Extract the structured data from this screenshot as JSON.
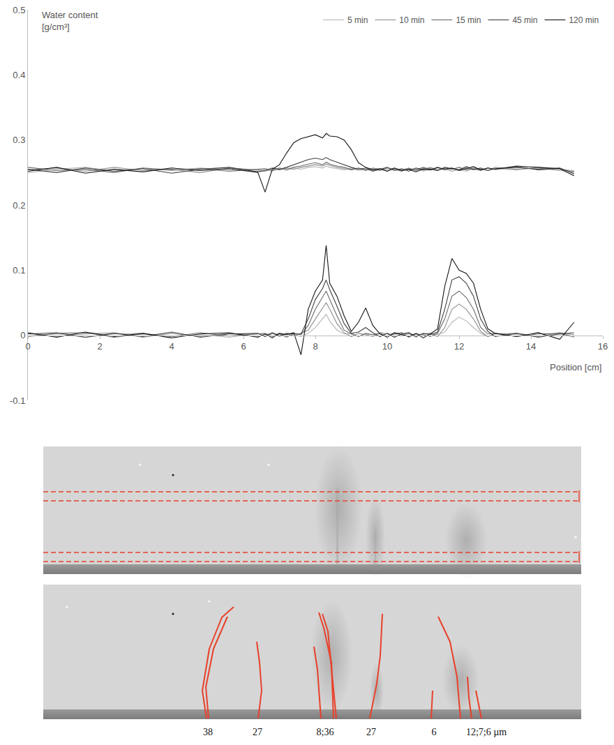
{
  "chart_data": {
    "type": "line",
    "x_label": "Position [cm]",
    "y_label": "Water content [g/cm³]",
    "xlim": [
      0,
      16
    ],
    "xticks": [
      0,
      2,
      4,
      6,
      8,
      10,
      12,
      14,
      16
    ],
    "ylim": [
      -0.1,
      0.5
    ],
    "yticks": [
      -0.1,
      0,
      0.1,
      0.2,
      0.3,
      0.4,
      0.5
    ],
    "grid": false,
    "legend": "top right",
    "x": [
      0,
      0.8,
      1.6,
      2.4,
      3.2,
      4.0,
      4.8,
      5.6,
      6.4,
      6.6,
      6.8,
      7.0,
      7.2,
      7.4,
      7.6,
      7.8,
      8.0,
      8.2,
      8.3,
      8.4,
      8.6,
      8.8,
      9.0,
      9.2,
      9.4,
      9.6,
      9.8,
      10.0,
      10.2,
      10.4,
      10.6,
      10.8,
      11.0,
      11.2,
      11.4,
      11.6,
      11.8,
      12.0,
      12.2,
      12.4,
      12.6,
      12.8,
      13.0,
      13.6,
      14.2,
      14.8,
      15.2
    ],
    "series": [
      {
        "name": "5 min",
        "color": "#b4b4b4",
        "values": [
          0.25,
          0.255,
          0.258,
          0.252,
          0.256,
          0.253,
          0.257,
          0.254,
          0.252,
          0.255,
          0.252,
          0.256,
          0.253,
          0.257,
          0.255,
          0.258,
          0.259,
          0.257,
          0.26,
          0.258,
          0.256,
          0.254,
          0.257,
          0.253,
          0.255,
          0.252,
          0.256,
          0.254,
          0.257,
          0.253,
          0.255,
          0.256,
          0.252,
          0.255,
          0.257,
          0.253,
          0.256,
          0.254,
          0.252,
          0.257,
          0.255,
          0.253,
          0.256,
          0.254,
          0.258,
          0.255,
          0.253
        ]
      },
      {
        "name": "10 min",
        "color": "#8e8e8e",
        "values": [
          0.254,
          0.257,
          0.252,
          0.258,
          0.253,
          0.255,
          0.25,
          0.257,
          0.254,
          0.252,
          0.256,
          0.254,
          0.257,
          0.255,
          0.258,
          0.26,
          0.262,
          0.26,
          0.263,
          0.261,
          0.258,
          0.256,
          0.254,
          0.256,
          0.253,
          0.257,
          0.255,
          0.252,
          0.256,
          0.254,
          0.257,
          0.253,
          0.255,
          0.258,
          0.254,
          0.256,
          0.252,
          0.255,
          0.257,
          0.254,
          0.256,
          0.253,
          0.258,
          0.255,
          0.257,
          0.253,
          0.252
        ]
      },
      {
        "name": "15 min",
        "color": "#6a6a6a",
        "values": [
          0.258,
          0.253,
          0.255,
          0.25,
          0.257,
          0.254,
          0.256,
          0.252,
          0.255,
          0.256,
          0.253,
          0.257,
          0.255,
          0.258,
          0.26,
          0.263,
          0.265,
          0.262,
          0.266,
          0.263,
          0.26,
          0.258,
          0.255,
          0.257,
          0.254,
          0.256,
          0.253,
          0.257,
          0.255,
          0.252,
          0.256,
          0.254,
          0.258,
          0.255,
          0.253,
          0.257,
          0.255,
          0.258,
          0.254,
          0.256,
          0.253,
          0.257,
          0.255,
          0.259,
          0.254,
          0.256,
          0.25
        ]
      },
      {
        "name": "45 min",
        "color": "#404040",
        "values": [
          0.255,
          0.25,
          0.257,
          0.252,
          0.256,
          0.249,
          0.255,
          0.258,
          0.251,
          0.253,
          0.257,
          0.255,
          0.258,
          0.262,
          0.266,
          0.27,
          0.272,
          0.27,
          0.273,
          0.27,
          0.266,
          0.262,
          0.258,
          0.255,
          0.257,
          0.252,
          0.255,
          0.258,
          0.253,
          0.256,
          0.252,
          0.257,
          0.254,
          0.256,
          0.253,
          0.258,
          0.256,
          0.254,
          0.259,
          0.255,
          0.257,
          0.253,
          0.256,
          0.258,
          0.255,
          0.257,
          0.248
        ]
      },
      {
        "name": "120 min",
        "color": "#151515",
        "values": [
          0.252,
          0.258,
          0.249,
          0.255,
          0.251,
          0.257,
          0.253,
          0.256,
          0.25,
          0.22,
          0.255,
          0.262,
          0.28,
          0.296,
          0.302,
          0.305,
          0.308,
          0.303,
          0.31,
          0.306,
          0.305,
          0.3,
          0.285,
          0.265,
          0.258,
          0.254,
          0.256,
          0.252,
          0.257,
          0.253,
          0.255,
          0.251,
          0.256,
          0.254,
          0.258,
          0.255,
          0.257,
          0.253,
          0.256,
          0.259,
          0.254,
          0.257,
          0.255,
          0.26,
          0.258,
          0.256,
          0.245
        ]
      },
      {
        "name": "5 min",
        "color": "#b4b4b4",
        "values": [
          -0.001,
          0.002,
          -0.003,
          0.002,
          0.003,
          -0.002,
          0.001,
          -0.003,
          0.003,
          -0.002,
          0.002,
          0.003,
          -0.002,
          0.001,
          -0.002,
          0.003,
          0.012,
          0.025,
          0.032,
          0.022,
          0.008,
          0.002,
          0.003,
          -0.002,
          0.002,
          0.001,
          -0.002,
          0.003,
          0.002,
          -0.001,
          0.002,
          -0.003,
          0.002,
          0.003,
          0.001,
          0.005,
          0.02,
          0.028,
          0.022,
          0.012,
          0.003,
          -0.002,
          0.003,
          0.001,
          -0.002,
          0.002,
          -0.003
        ]
      },
      {
        "name": "10 min",
        "color": "#8e8e8e",
        "values": [
          0.003,
          -0.002,
          0.002,
          0.004,
          -0.003,
          0.003,
          -0.002,
          0.003,
          -0.002,
          0.001,
          0.003,
          -0.002,
          0.002,
          -0.001,
          0.003,
          0.008,
          0.025,
          0.042,
          0.05,
          0.04,
          0.018,
          0.004,
          -0.002,
          0.003,
          0.001,
          -0.002,
          0.004,
          0.002,
          -0.003,
          0.002,
          0.003,
          -0.001,
          0.002,
          0.003,
          -0.002,
          0.012,
          0.04,
          0.048,
          0.04,
          0.025,
          0.006,
          -0.002,
          0.002,
          0.003,
          -0.002,
          0.004,
          0.001
        ]
      },
      {
        "name": "15 min",
        "color": "#6a6a6a",
        "values": [
          -0.002,
          0.003,
          0.004,
          -0.003,
          0.002,
          -0.002,
          0.004,
          -0.001,
          0.002,
          0.003,
          -0.002,
          0.002,
          -0.003,
          0.003,
          0.001,
          0.015,
          0.04,
          0.058,
          0.068,
          0.055,
          0.03,
          0.008,
          0.002,
          -0.002,
          0.003,
          0.001,
          0.003,
          -0.002,
          0.002,
          0.004,
          -0.003,
          0.002,
          0.001,
          -0.002,
          0.003,
          0.025,
          0.06,
          0.068,
          0.058,
          0.04,
          0.012,
          0.002,
          0.003,
          -0.002,
          0.002,
          0.003,
          -0.002
        ]
      },
      {
        "name": "45 min",
        "color": "#404040",
        "values": [
          0.002,
          0.004,
          -0.003,
          0.003,
          -0.002,
          0.005,
          -0.003,
          0.002,
          0.003,
          -0.002,
          0.004,
          -0.001,
          0.003,
          0.002,
          0.002,
          0.025,
          0.055,
          0.072,
          0.085,
          0.07,
          0.045,
          0.018,
          0.003,
          0.005,
          0.012,
          0.004,
          -0.002,
          0.003,
          -0.003,
          0.002,
          0.004,
          -0.002,
          0.003,
          0.001,
          0.005,
          0.04,
          0.085,
          0.09,
          0.08,
          0.06,
          0.025,
          0.006,
          -0.002,
          0.003,
          -0.003,
          0.002,
          0.004
        ]
      },
      {
        "name": "120 min",
        "color": "#151515",
        "values": [
          0.004,
          -0.003,
          0.005,
          -0.002,
          0.003,
          -0.004,
          0.002,
          0.004,
          -0.003,
          0.002,
          -0.004,
          0.003,
          0.001,
          0.004,
          -0.03,
          0.04,
          0.068,
          0.085,
          0.138,
          0.08,
          0.06,
          0.03,
          0.006,
          0.02,
          0.042,
          0.015,
          0.002,
          -0.003,
          0.004,
          0.001,
          -0.002,
          0.003,
          -0.004,
          0.002,
          0.01,
          0.075,
          0.118,
          0.1,
          0.095,
          0.08,
          0.04,
          0.01,
          0.003,
          -0.002,
          0.004,
          -0.006,
          0.02
        ]
      }
    ]
  },
  "image_panels": {
    "crack_labels": [
      "38",
      "27",
      "8;36",
      "27",
      "6",
      "12;7;6 µm"
    ]
  }
}
